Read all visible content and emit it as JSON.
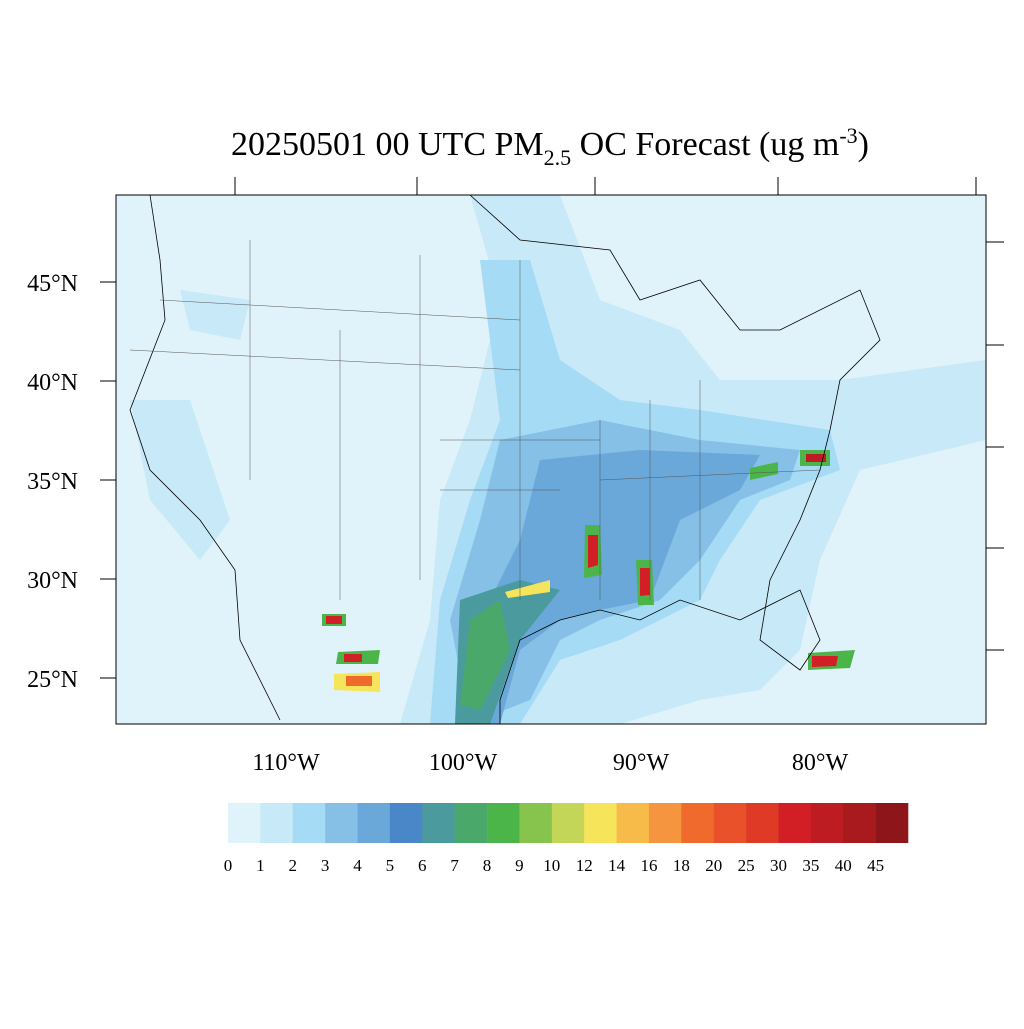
{
  "title": {
    "text": "20250501 00 UTC PM",
    "subscript": "2.5",
    "text2": " OC Forecast (ug m",
    "superscript": "-3",
    "text3": ")"
  },
  "latitude_labels": [
    "45°N",
    "40°N",
    "35°N",
    "30°N",
    "25°N"
  ],
  "longitude_labels": [
    "110°W",
    "100°W",
    "90°W",
    "80°W"
  ],
  "colorbar": {
    "levels": [
      0,
      1,
      2,
      3,
      4,
      5,
      6,
      7,
      8,
      9,
      10,
      12,
      14,
      16,
      18,
      20,
      25,
      30,
      35,
      40,
      45
    ],
    "colors": [
      "#e0f3fa",
      "#c8e9f7",
      "#a6dbf5",
      "#87c0e7",
      "#6aa8d9",
      "#4a87c9",
      "#4a9a9e",
      "#4aa86a",
      "#4cb54a",
      "#86c44d",
      "#c4d658",
      "#f6e55a",
      "#f7bb4a",
      "#f5953f",
      "#f06a2e",
      "#e8512a",
      "#de3a25",
      "#d21f26",
      "#bd1c22",
      "#a81a1e",
      "#8e1519"
    ]
  }
}
